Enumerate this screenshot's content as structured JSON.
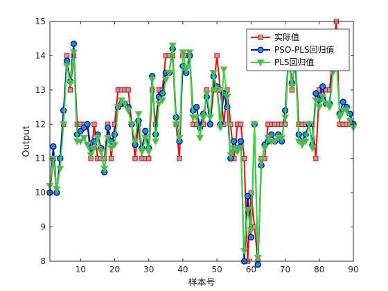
{
  "chart_data": {
    "type": "line",
    "xlabel": "样本号",
    "ylabel": "Output",
    "xlim": [
      1,
      90
    ],
    "ylim": [
      8,
      15
    ],
    "xticks": [
      10,
      20,
      30,
      40,
      50,
      60,
      70,
      80,
      90
    ],
    "yticks": [
      8,
      9,
      10,
      11,
      12,
      13,
      14,
      15
    ],
    "legend_position": "top-right",
    "x": [
      1,
      2,
      3,
      4,
      5,
      6,
      7,
      8,
      9,
      10,
      11,
      12,
      13,
      14,
      15,
      16,
      17,
      18,
      19,
      20,
      21,
      22,
      23,
      24,
      25,
      26,
      27,
      28,
      29,
      30,
      31,
      32,
      33,
      34,
      35,
      36,
      37,
      38,
      39,
      40,
      41,
      42,
      43,
      44,
      45,
      46,
      47,
      48,
      49,
      50,
      51,
      52,
      53,
      54,
      55,
      56,
      57,
      58,
      59,
      60,
      61,
      62,
      63,
      64,
      65,
      66,
      67,
      68,
      69,
      70,
      71,
      72,
      73,
      74,
      75,
      76,
      77,
      78,
      79,
      80,
      81,
      82,
      83,
      84,
      85,
      86,
      87,
      88,
      89,
      90
    ],
    "series": [
      {
        "name": "实际值",
        "color": "#ff0000",
        "marker": "square",
        "values": [
          10,
          11,
          10,
          11,
          12,
          14,
          13,
          14,
          12,
          12,
          12,
          12,
          11,
          12,
          11,
          11,
          11,
          12,
          11,
          12,
          13,
          13,
          13,
          13,
          12,
          11,
          12,
          11,
          11,
          11,
          13,
          12,
          13,
          13,
          14,
          14,
          14,
          12,
          11,
          14,
          14,
          14,
          12,
          12,
          12,
          12,
          13,
          12,
          13,
          14,
          13,
          12,
          13,
          12,
          11,
          12,
          12,
          11,
          8,
          10,
          9,
          8,
          11,
          11,
          12,
          12,
          12,
          12,
          12,
          12,
          14,
          13,
          14,
          12,
          12,
          12,
          12,
          12,
          11,
          13,
          13,
          13,
          13,
          14,
          15,
          12,
          12,
          12,
          12,
          12
        ]
      },
      {
        "name": "PSO-PLS回归值",
        "color": "#0000d0",
        "marker": "circle",
        "values": [
          10,
          11.35,
          10,
          11,
          12.4,
          13.85,
          13.25,
          14.35,
          11.7,
          11.8,
          11.9,
          12,
          11.3,
          11.5,
          11.7,
          11.3,
          10.6,
          11.9,
          11.5,
          11.7,
          12.5,
          12.6,
          12.6,
          12.5,
          12,
          11.4,
          12.1,
          11.3,
          11.8,
          11.3,
          13.4,
          11.7,
          12.8,
          12.9,
          13.5,
          13.5,
          14.2,
          12.2,
          11.5,
          13.7,
          13.5,
          14,
          12.4,
          12.5,
          11.9,
          12.3,
          12.8,
          12,
          13.4,
          13.1,
          12,
          12.9,
          12.5,
          11,
          11.5,
          11.3,
          11.5,
          8,
          9.9,
          8.7,
          12,
          7.9,
          10.8,
          11.4,
          11.5,
          11.7,
          11.5,
          11.7,
          11.5,
          12.4,
          14,
          13.2,
          13.8,
          11.7,
          11.5,
          11.7,
          12,
          11.4,
          12.9,
          12.7,
          13.1,
          12.6,
          12.6,
          13.6,
          14,
          12.3,
          12.65,
          12.5,
          12.3,
          12
        ]
      },
      {
        "name": "PLS回归值",
        "color": "#33dd33",
        "marker": "triangle-down",
        "values": [
          10.2,
          11,
          10.1,
          10.7,
          12,
          13.7,
          13.2,
          14.1,
          11.5,
          11.5,
          11.6,
          11.4,
          11.1,
          11.3,
          11.6,
          11.2,
          10.7,
          11.6,
          11.3,
          11.4,
          12.5,
          12.7,
          12.6,
          12.4,
          12,
          11.5,
          12.3,
          11.2,
          11.6,
          11.2,
          13.3,
          11.5,
          12.6,
          12.7,
          13.3,
          13.5,
          14.3,
          12,
          11.6,
          14.1,
          13.6,
          14.1,
          12.2,
          12.2,
          11.6,
          12.2,
          12.9,
          12.2,
          13.5,
          13,
          11.9,
          13.6,
          12.8,
          11.1,
          11.3,
          11.2,
          11.3,
          8.3,
          9.5,
          8.9,
          12,
          8.1,
          10.9,
          11.3,
          11.6,
          11.5,
          11.5,
          11.6,
          11.6,
          12.2,
          13.9,
          13.1,
          14.1,
          11.5,
          11.4,
          11.5,
          12,
          11.3,
          12.7,
          12.5,
          12.8,
          12.6,
          12.5,
          13.5,
          14,
          12.2,
          12.4,
          12.4,
          12.1,
          11.9
        ]
      }
    ]
  }
}
